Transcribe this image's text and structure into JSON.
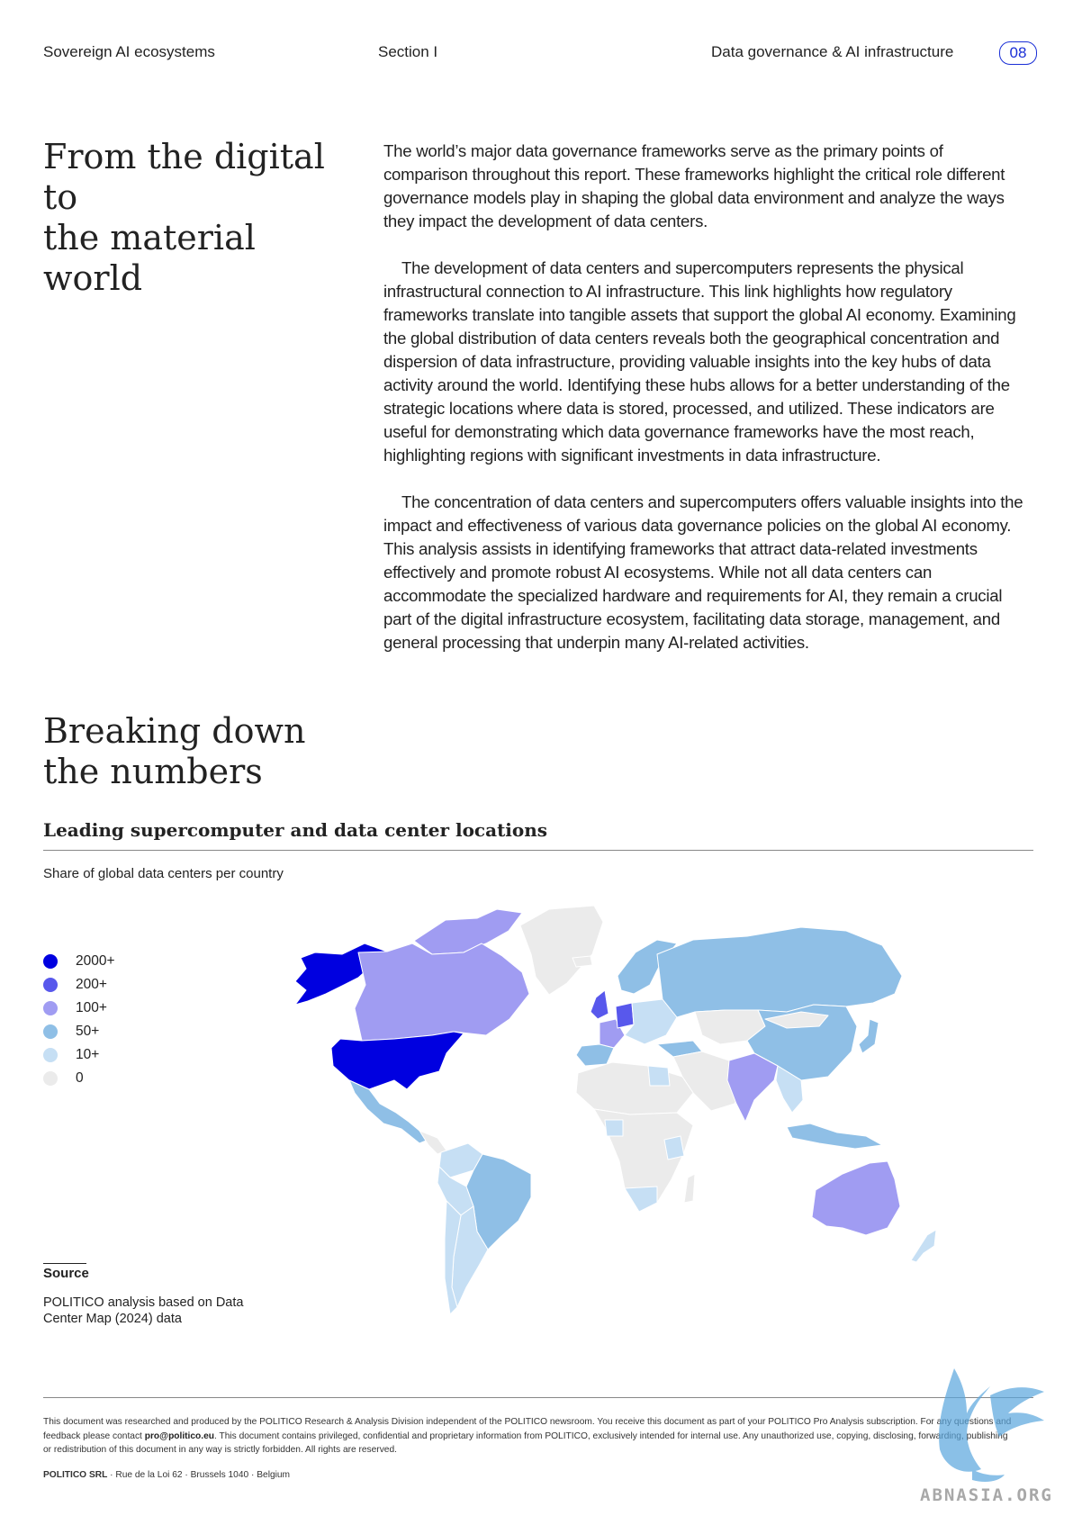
{
  "header": {
    "left": "Sovereign AI ecosystems",
    "center": "Section I",
    "right": "Data governance & AI infrastructure",
    "page_number": "08"
  },
  "section1": {
    "title_line1": "From the digital to",
    "title_line2": "the material world",
    "paragraphs": [
      "The world’s major data governance frameworks serve as the primary points of comparison throughout this report. These frameworks highlight the critical role different governance models play in shaping the global data environment and analyze the ways they impact the development of data centers.",
      "The development of data centers and supercomputers represents the physical infrastructural connection to AI infrastructure. This link highlights how regulatory frameworks translate into tangible assets that support the global AI economy. Examining the global distribution of data centers reveals both the geographical concentration and dispersion of data infrastructure, providing valuable insights into the key hubs of data activity around the world. Identifying these hubs allows for a better understanding of the strategic locations where data is stored, processed, and utilized. These indicators are useful for demonstrating which data governance frameworks have the most reach, highlighting regions with significant investments in data infrastructure.",
      "The concentration of data centers and supercomputers offers valuable insights into the impact and effectiveness of various data governance policies on the global AI economy. This analysis assists in identifying frameworks that attract data-related investments effectively and promote robust AI ecosystems. While not all data centers can accommodate the specialized hardware and requirements for AI, they remain a crucial part of the digital infrastructure ecosystem, facilitating data storage, management, and general processing that underpin many AI-related activities."
    ]
  },
  "section2": {
    "title_line1": "Breaking down",
    "title_line2": "the numbers"
  },
  "chart": {
    "title": "Leading supercomputer and data center locations",
    "subtitle": "Share of global data centers per country",
    "legend": [
      {
        "label": "2000+",
        "color": "#0000e0"
      },
      {
        "label": "200+",
        "color": "#5858ec"
      },
      {
        "label": "100+",
        "color": "#a09cf2"
      },
      {
        "label": "50+",
        "color": "#8fbfe6"
      },
      {
        "label": "10+",
        "color": "#c6dff4"
      },
      {
        "label": "0",
        "color": "#ebebeb"
      }
    ],
    "source_heading": "Source",
    "source_text": "POLITICO analysis based on Data Center Map (2024) data"
  },
  "chart_data": {
    "type": "choropleth-map",
    "legend_categories": [
      "2000+",
      "200+",
      "100+",
      "50+",
      "10+",
      "0"
    ],
    "countries": [
      {
        "country": "United States",
        "category": "2000+"
      },
      {
        "country": "United Kingdom",
        "category": "200+"
      },
      {
        "country": "Germany",
        "category": "200+"
      },
      {
        "country": "Canada",
        "category": "100+"
      },
      {
        "country": "France",
        "category": "100+"
      },
      {
        "country": "India",
        "category": "100+"
      },
      {
        "country": "Australia",
        "category": "100+"
      },
      {
        "country": "Russia",
        "category": "50+"
      },
      {
        "country": "China",
        "category": "50+"
      },
      {
        "country": "Brazil",
        "category": "50+"
      },
      {
        "country": "Mexico",
        "category": "50+"
      },
      {
        "country": "Spain",
        "category": "50+"
      },
      {
        "country": "Italy",
        "category": "50+"
      },
      {
        "country": "Sweden",
        "category": "50+"
      },
      {
        "country": "Japan",
        "category": "50+"
      },
      {
        "country": "Indonesia",
        "category": "50+"
      },
      {
        "country": "Turkey",
        "category": "50+"
      },
      {
        "country": "Chile",
        "category": "10+"
      },
      {
        "country": "Argentina",
        "category": "10+"
      },
      {
        "country": "Colombia",
        "category": "10+"
      },
      {
        "country": "Egypt",
        "category": "10+"
      },
      {
        "country": "South Africa",
        "category": "10+"
      },
      {
        "country": "Kenya",
        "category": "10+"
      },
      {
        "country": "Nigeria",
        "category": "10+"
      },
      {
        "country": "New Zealand",
        "category": "10+"
      },
      {
        "country": "Greenland",
        "category": "0"
      },
      {
        "country": "Algeria",
        "category": "0"
      },
      {
        "country": "Sudan",
        "category": "0"
      },
      {
        "country": "Kazakhstan",
        "category": "0"
      },
      {
        "country": "Mongolia",
        "category": "0"
      }
    ]
  },
  "footer": {
    "disclaimer_a": "This document was researched and produced by the POLITICO Research & Analysis Division independent of the POLITICO newsroom. You receive this document as part of your POLITICO Pro Analysis subscription. For any questions and feedback please contact ",
    "email": "pro@politico.eu",
    "disclaimer_b": ". This document contains privileged, confidential and proprietary information from POLITICO, exclusively intended for internal use. Any unauthorized use, copying, disclosing, forwarding, publishing or redistribution of this document in any way is strictly forbidden. All rights are reserved.",
    "company": "POLITICO SRL",
    "address": " · Rue de la Loi 62 · Brussels 1040 · Belgium"
  },
  "watermark": {
    "text": "ABNASIA.ORG"
  }
}
